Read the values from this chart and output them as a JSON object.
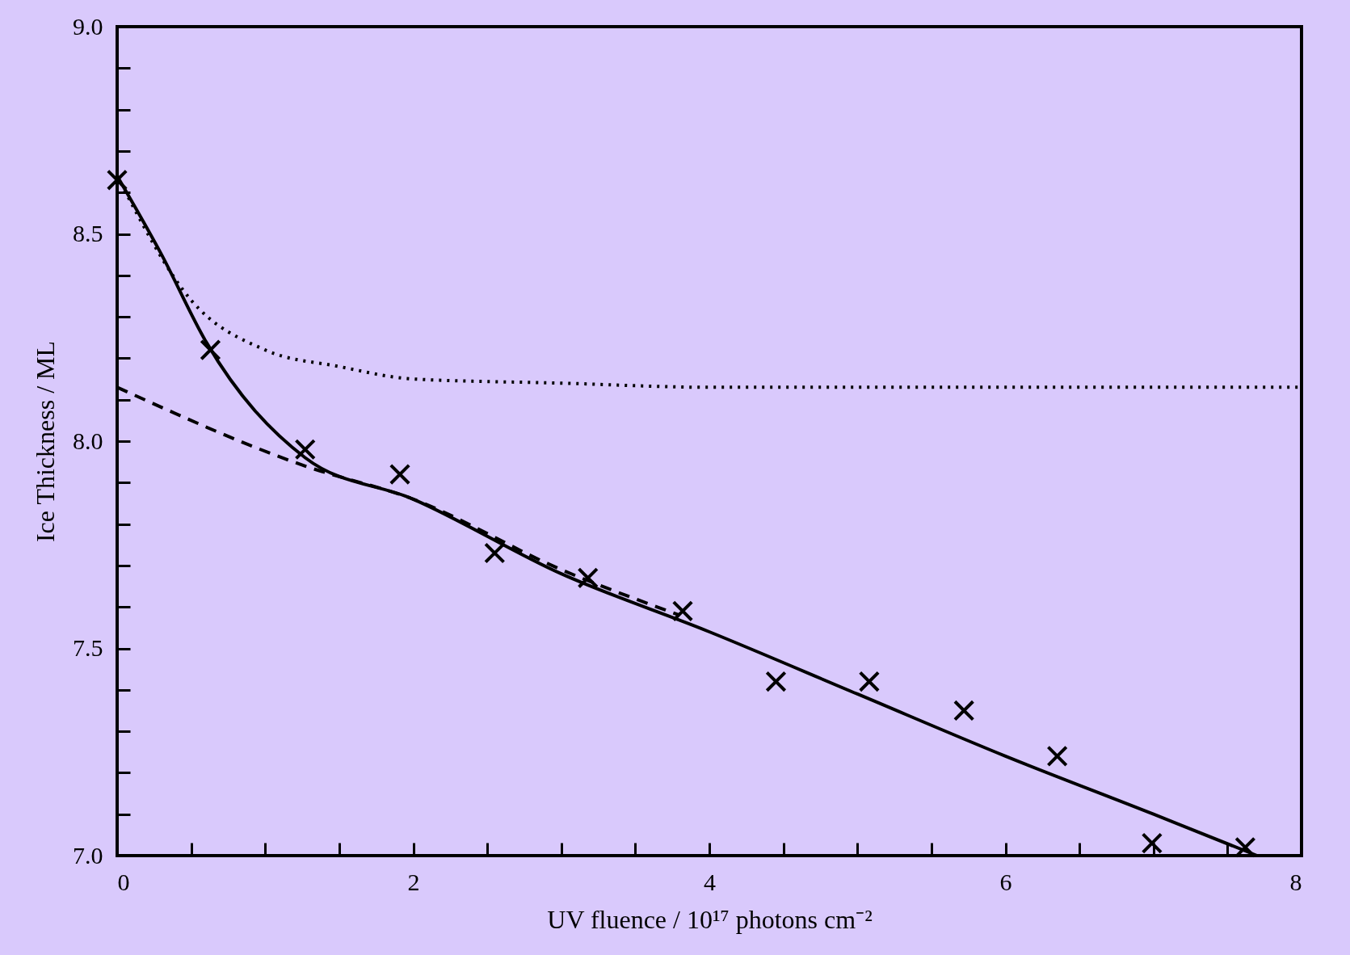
{
  "chart_data": {
    "type": "scatter",
    "xlabel": "UV fluence / 10¹⁷ photons cm⁻²",
    "ylabel": "Ice Thickness / ML",
    "xlim": [
      0,
      8
    ],
    "ylim": [
      7.0,
      9.0
    ],
    "xticks": [
      0,
      {
        "value": 0.5,
        "label": null
      },
      {
        "value": 1,
        "label": null
      },
      {
        "value": 1.5,
        "label": null
      },
      2,
      {
        "value": 2.5,
        "label": null
      },
      {
        "value": 3,
        "label": null
      },
      {
        "value": 3.5,
        "label": null
      },
      4,
      {
        "value": 4.5,
        "label": null
      },
      {
        "value": 5,
        "label": null
      },
      {
        "value": 5.5,
        "label": null
      },
      6,
      {
        "value": 6.5,
        "label": null
      },
      {
        "value": 7,
        "label": null
      },
      {
        "value": 7.5,
        "label": null
      },
      8
    ],
    "yticks": [
      {
        "value": 7.0,
        "label": "7.0"
      },
      {
        "value": 7.1,
        "label": null
      },
      {
        "value": 7.2,
        "label": null
      },
      {
        "value": 7.3,
        "label": null
      },
      {
        "value": 7.4,
        "label": null
      },
      {
        "value": 7.5,
        "label": "7.5"
      },
      {
        "value": 7.6,
        "label": null
      },
      {
        "value": 7.7,
        "label": null
      },
      {
        "value": 7.8,
        "label": null
      },
      {
        "value": 7.9,
        "label": null
      },
      {
        "value": 8.0,
        "label": "8.0"
      },
      {
        "value": 8.1,
        "label": null
      },
      {
        "value": 8.2,
        "label": null
      },
      {
        "value": 8.3,
        "label": null
      },
      {
        "value": 8.4,
        "label": null
      },
      {
        "value": 8.5,
        "label": "8.5"
      },
      {
        "value": 8.6,
        "label": null
      },
      {
        "value": 8.7,
        "label": null
      },
      {
        "value": 8.8,
        "label": null
      },
      {
        "value": 8.9,
        "label": null
      },
      {
        "value": 9.0,
        "label": "9.0"
      }
    ],
    "grid": false,
    "series": [
      {
        "marker": "cross",
        "color": "#000000",
        "x": [
          0,
          0.63,
          1.27,
          1.91,
          2.55,
          3.18,
          3.82,
          4.45,
          5.08,
          5.72,
          6.35,
          6.99,
          7.62
        ],
        "values": [
          8.63,
          8.22,
          7.98,
          7.92,
          7.73,
          7.67,
          7.59,
          7.42,
          7.42,
          7.35,
          7.24,
          7.03,
          7.02
        ]
      },
      {
        "type": "line",
        "line_style": "solid",
        "color": "#000000",
        "x": [
          0,
          0.3,
          0.6,
          1.27,
          2,
          3,
          4,
          5,
          6,
          7,
          7.7
        ],
        "values": [
          8.64,
          8.45,
          8.24,
          7.96,
          7.86,
          7.68,
          7.54,
          7.39,
          7.24,
          7.1,
          7.0
        ]
      },
      {
        "type": "line",
        "line_style": "dotted",
        "color": "#000000",
        "x": [
          0,
          0.5,
          1,
          1.5,
          2,
          3,
          4,
          5,
          6,
          7,
          8
        ],
        "values": [
          8.64,
          8.34,
          8.22,
          8.18,
          8.15,
          8.14,
          8.13,
          8.13,
          8.13,
          8.13,
          8.13
        ]
      },
      {
        "type": "line",
        "line_style": "dashed",
        "color": "#000000",
        "x": [
          0,
          1.27,
          2,
          3,
          3.8
        ],
        "values": [
          8.13,
          7.94,
          7.86,
          7.69,
          7.58
        ]
      }
    ]
  }
}
